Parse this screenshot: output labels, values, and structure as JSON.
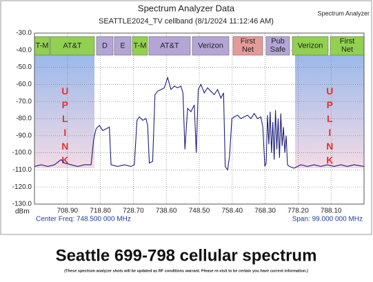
{
  "chart_data": {
    "type": "line",
    "title": "Spectrum Analyzer Data",
    "subtitle": "SEATTLE2024_TV cellband (8/1/2024 11:12:46 AM)",
    "corner_label": "Spectrum Analyzer",
    "y_label": "dBm",
    "center_label": "Center Freq: 748.500 000 MHz",
    "span_label": "Span: 99.000 000 MHz",
    "bands": [
      {
        "lines": [
          "T-M"
        ],
        "color": "#92d050"
      },
      {
        "lines": [
          "AT&T"
        ],
        "color": "#92d050"
      },
      {
        "lines": [
          "D"
        ],
        "color": "#b4a5d6"
      },
      {
        "lines": [
          "E"
        ],
        "color": "#b4a5d6"
      },
      {
        "lines": [
          "T-M"
        ],
        "color": "#92d050"
      },
      {
        "lines": [
          "AT&T"
        ],
        "color": "#b4a5d6"
      },
      {
        "lines": [
          "Verizon"
        ],
        "color": "#b4a5d6"
      },
      {
        "lines": [
          "First",
          "Net"
        ],
        "color": "#e59a9a"
      },
      {
        "lines": [
          "Pub",
          "Safe"
        ],
        "color": "#b4a5d6"
      },
      {
        "lines": [
          "Verizon"
        ],
        "color": "#92d050"
      },
      {
        "lines": [
          "First",
          "Net"
        ],
        "color": "#92d050"
      }
    ],
    "annotations": [
      "UPLINK",
      "UPLINK"
    ],
    "xlim": [
      699,
      798
    ],
    "ylim": [
      -130,
      -30
    ],
    "xticks": [
      {
        "value": 708.9,
        "label": "708.90"
      },
      {
        "value": 718.8,
        "label": "718.80"
      },
      {
        "value": 728.7,
        "label": "728.70"
      },
      {
        "value": 738.6,
        "label": "738.60"
      },
      {
        "value": 748.5,
        "label": "748.50"
      },
      {
        "value": 758.4,
        "label": "758.40"
      },
      {
        "value": 768.3,
        "label": "768.30"
      },
      {
        "value": 778.2,
        "label": "778.20"
      },
      {
        "value": 788.1,
        "label": "788.10"
      }
    ],
    "yticks": [
      {
        "value": -30,
        "label": "-30.0"
      },
      {
        "value": -40,
        "label": "-40.0"
      },
      {
        "value": -50,
        "label": "-50.0"
      },
      {
        "value": -60,
        "label": "-60.0"
      },
      {
        "value": -70,
        "label": "-70.0"
      },
      {
        "value": -80,
        "label": "-80.0"
      },
      {
        "value": -90,
        "label": "-90.0"
      },
      {
        "value": -100,
        "label": "-100.0"
      },
      {
        "value": -110,
        "label": "-110.0"
      },
      {
        "value": -120,
        "label": "-120.0"
      },
      {
        "value": -130,
        "label": "-130.0"
      }
    ],
    "grid": true,
    "series": [
      {
        "color": "#1c1c7a",
        "x": [
          699,
          701,
          703,
          705,
          707,
          708,
          710,
          712,
          714,
          716,
          716.8,
          717.5,
          718.5,
          719.5,
          720.5,
          721.5,
          722,
          724,
          726,
          728,
          729,
          729.8,
          730.5,
          731.5,
          732.5,
          733,
          733.5,
          734.5,
          735.2,
          736,
          737,
          738,
          739,
          740,
          741,
          742,
          743,
          743.6,
          744.2,
          745,
          746,
          747,
          747.6,
          748.2,
          749,
          750,
          751,
          752,
          753,
          754,
          755,
          755.8,
          756.3,
          757,
          757.6,
          758.3,
          759,
          760,
          761,
          762,
          763,
          764,
          765,
          766,
          767,
          767.6,
          768.2,
          768.6,
          769,
          769.4,
          769.8,
          770.2,
          770.6,
          771,
          771.4,
          771.8,
          772.2,
          772.6,
          773,
          773.4,
          773.8,
          774.2,
          774.6,
          775,
          775.6,
          777,
          779,
          781,
          783,
          785,
          787,
          789,
          791,
          793,
          795,
          798
        ],
        "values": [
          -108,
          -107,
          -108,
          -107,
          -104,
          -106,
          -107,
          -108,
          -107,
          -107,
          -92,
          -86,
          -84,
          -87,
          -86,
          -85,
          -107,
          -108,
          -107,
          -108,
          -107,
          -81,
          -79,
          -81,
          -80,
          -84,
          -106,
          -105,
          -66,
          -64,
          -63,
          -62,
          -56,
          -63,
          -61,
          -62,
          -61,
          -65,
          -98,
          -74,
          -76,
          -72,
          -100,
          -63,
          -60,
          -65,
          -62,
          -64,
          -66,
          -63,
          -68,
          -65,
          -108,
          -110,
          -102,
          -80,
          -79,
          -78,
          -80,
          -79,
          -78,
          -80,
          -77,
          -80,
          -79,
          -85,
          -108,
          -106,
          -78,
          -95,
          -76,
          -100,
          -82,
          -104,
          -75,
          -98,
          -80,
          -103,
          -77,
          -96,
          -85,
          -100,
          -90,
          -107,
          -108,
          -109,
          -107,
          -108,
          -107,
          -108,
          -107,
          -108,
          -107,
          -108,
          -107,
          -108
        ]
      }
    ]
  },
  "footer": {
    "title": "Seattle 699-798 cellular spectrum",
    "note": "(These spectrum analyzer shots will be updated as RF conditions warrant.  Please re-visit to be certain you have current information.)"
  }
}
